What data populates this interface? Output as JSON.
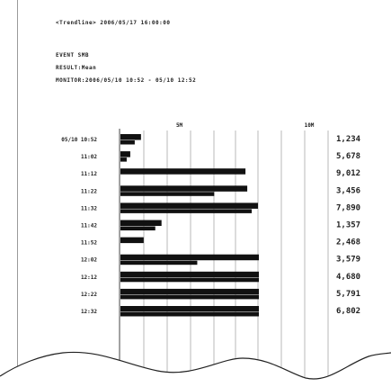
{
  "header": {
    "title_line": "<Trendline> 2006/05/17 16:00:00",
    "line2": "EVENT SMB",
    "line3": "RESULT:Mean",
    "line4": "MONITOR:2006/05/10 10:52 - 05/10 12:52"
  },
  "chart_data": {
    "type": "bar",
    "orientation": "horizontal",
    "categories": [
      "05/10 10:52",
      "11:02",
      "11:12",
      "11:22",
      "11:32",
      "11:42",
      "11:52",
      "12:02",
      "12:12",
      "12:22",
      "12:32"
    ],
    "series": [
      {
        "values": [
          2.3,
          1.1,
          14.0,
          14.2,
          15.4,
          4.6,
          2.6,
          15.5,
          15.5,
          15.5,
          15.5
        ]
      },
      {
        "values": [
          1.6,
          0.7,
          0.0,
          10.5,
          14.7,
          3.9,
          0.0,
          8.6,
          15.5,
          15.5,
          15.5
        ]
      }
    ],
    "axis_ticks": [
      "5M",
      "10M"
    ],
    "xlim": [
      0,
      15.5
    ],
    "tick_values": [
      6.7,
      15.5
    ],
    "grid": true,
    "right_labels": [
      "1,234",
      "5,678",
      "9,012",
      "3,456",
      "7,890",
      "1,357",
      "2,468",
      "3,579",
      "4,680",
      "5,791",
      "6,802"
    ]
  },
  "colors": {
    "bar": "#111111",
    "grid": "#9c9c9c",
    "tear": "#222222"
  }
}
